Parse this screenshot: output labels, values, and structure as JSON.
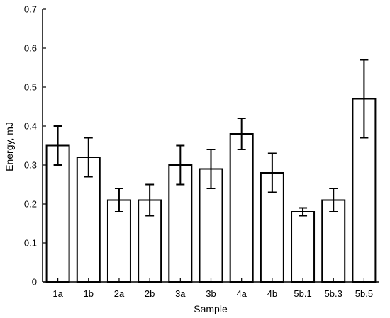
{
  "chart_data": {
    "type": "bar",
    "categories": [
      "1a",
      "1b",
      "2a",
      "2b",
      "3a",
      "3b",
      "4a",
      "4b",
      "5b.1",
      "5b.3",
      "5b.5"
    ],
    "series": [
      {
        "values": [
          0.35,
          0.32,
          0.21,
          0.21,
          0.3,
          0.29,
          0.38,
          0.28,
          0.18,
          0.21,
          0.47
        ],
        "error_low": [
          0.3,
          0.27,
          0.18,
          0.17,
          0.25,
          0.24,
          0.34,
          0.23,
          0.17,
          0.18,
          0.37
        ],
        "error_high": [
          0.4,
          0.37,
          0.24,
          0.25,
          0.35,
          0.34,
          0.42,
          0.33,
          0.19,
          0.24,
          0.57
        ]
      }
    ],
    "xlabel": "Sample",
    "ylabel": "Energy, mJ",
    "ylim": [
      0,
      0.7
    ],
    "yticks": [
      "0",
      "0.1",
      "0.2",
      "0.3",
      "0.4",
      "0.5",
      "0.6",
      "0.7"
    ],
    "grid": false,
    "bar_fill": "#ffffff",
    "bar_stroke": "#000000"
  }
}
